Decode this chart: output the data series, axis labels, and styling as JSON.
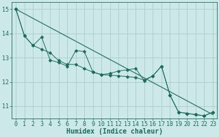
{
  "xlabel": "Humidex (Indice chaleur)",
  "background_color": "#cce8e8",
  "grid_color": "#aacccc",
  "line_color": "#1a6b5a",
  "xlim": [
    -0.5,
    23.5
  ],
  "ylim": [
    10.5,
    15.3
  ],
  "yticks": [
    11,
    12,
    13,
    14,
    15
  ],
  "xticks": [
    0,
    1,
    2,
    3,
    4,
    5,
    6,
    7,
    8,
    9,
    10,
    11,
    12,
    13,
    14,
    15,
    16,
    17,
    18,
    19,
    20,
    21,
    22,
    23
  ],
  "jagged_x": [
    0,
    1,
    2,
    3,
    4,
    5,
    6,
    7,
    8,
    9,
    10,
    11,
    12,
    13,
    14,
    15,
    16,
    17,
    18,
    19,
    20,
    21,
    22,
    23
  ],
  "jagged_y": [
    15.0,
    13.9,
    13.5,
    13.85,
    12.9,
    12.8,
    12.65,
    13.3,
    13.25,
    12.4,
    12.3,
    12.35,
    12.45,
    12.5,
    12.55,
    12.05,
    12.25,
    12.65,
    11.45,
    10.75,
    10.7,
    10.65,
    10.6,
    10.75
  ],
  "smooth_x": [
    0,
    1,
    2,
    3,
    4,
    5,
    6,
    7,
    8,
    9,
    10,
    11,
    12,
    13,
    14,
    15,
    16,
    17,
    18,
    19,
    20,
    21,
    22,
    23
  ],
  "smooth_y": [
    15.0,
    13.9,
    13.5,
    13.35,
    13.2,
    12.88,
    12.72,
    12.72,
    12.55,
    12.4,
    12.3,
    12.28,
    12.25,
    12.22,
    12.18,
    12.08,
    12.25,
    12.65,
    11.45,
    10.75,
    10.7,
    10.65,
    10.6,
    10.75
  ],
  "trend_x": [
    0,
    23
  ],
  "trend_y": [
    15.0,
    10.65
  ],
  "marker_size": 2.5,
  "font_color": "#1a6b5a",
  "xlabel_fontsize": 7,
  "tick_fontsize": 6
}
